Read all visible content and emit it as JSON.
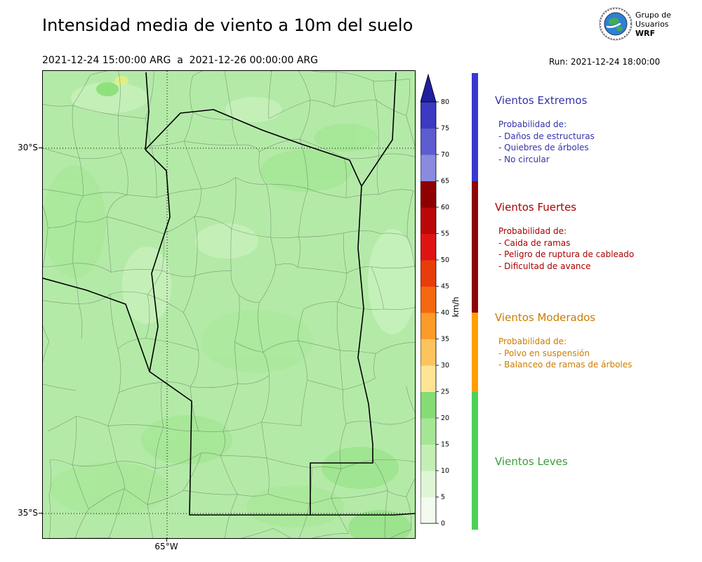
{
  "header": {
    "title": "Intensidad media de viento a 10m del suelo",
    "period": "2021-12-24 15:00:00 ARG  a  2021-12-26 00:00:00 ARG",
    "run": "Run: 2021-12-24 18:00:00",
    "logo_text": [
      "Grupo de",
      "Usuarios",
      "WRF"
    ]
  },
  "map": {
    "base_color": "#b4eaa8",
    "lat_ticks": [
      {
        "label": "30°S"
      },
      {
        "label": "35°S"
      }
    ],
    "lon_ticks": [
      {
        "label": "65°W"
      }
    ]
  },
  "colorbar": {
    "unit": "km/h",
    "ticks": [
      "0",
      "5",
      "10",
      "15",
      "20",
      "25",
      "30",
      "35",
      "40",
      "45",
      "50",
      "55",
      "60",
      "65",
      "70",
      "75",
      "80"
    ],
    "segment_colors": [
      "#f2fbee",
      "#def6d5",
      "#c3efb5",
      "#a5e695",
      "#86dc74",
      "#fee596",
      "#fdc45d",
      "#fd9b28",
      "#f4680f",
      "#ea3c0a",
      "#e01313",
      "#bb0707",
      "#8e0000",
      "#8a8ade",
      "#5c5cd0",
      "#3a3ac2"
    ],
    "arrow_color": "#1f1fa0"
  },
  "categories": [
    {
      "name": "Vientos Extremos",
      "text_color": "#3333aa",
      "strip_color": "#3939cf",
      "range": [
        65,
        80
      ],
      "prob_label": "Probabilidad de:",
      "items": [
        "- Daños de estructuras",
        "- Quiebres de árboles",
        "- No circular"
      ]
    },
    {
      "name": "Vientos Fuertes",
      "text_color": "#aa0000",
      "strip_color": "#8f0505",
      "range": [
        40,
        65
      ],
      "prob_label": "Probabilidad de:",
      "items": [
        "- Caida de ramas",
        "- Peligro de ruptura de cableado",
        "- Dificultad de avance"
      ]
    },
    {
      "name": "Vientos Moderados",
      "text_color": "#cc7c00",
      "strip_color": "#ff9e00",
      "range": [
        25,
        40
      ],
      "prob_label": "Probabilidad de:",
      "items": [
        "- Polvo en suspensión",
        "- Balanceo de ramas de árboles"
      ]
    },
    {
      "name": "Vientos Leves",
      "text_color": "#3a9d3a",
      "strip_color": "#4cd058",
      "range": [
        0,
        25
      ],
      "prob_label": "",
      "items": []
    }
  ]
}
